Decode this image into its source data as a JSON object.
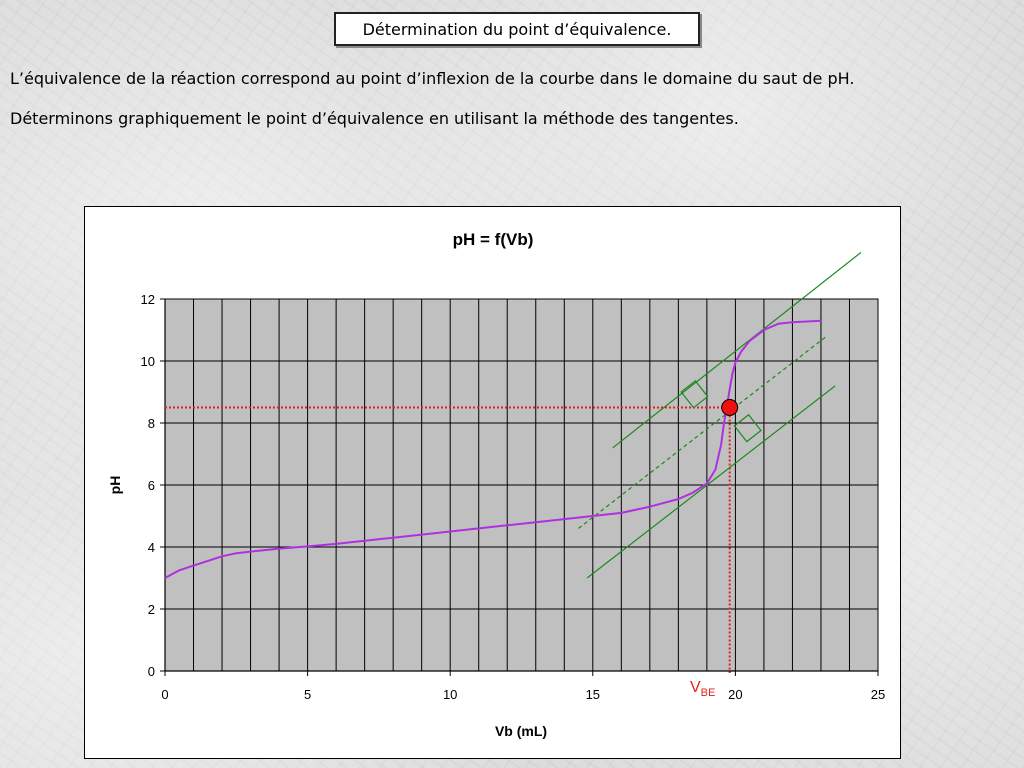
{
  "slide": {
    "title": "Détermination du point d’équivalence.",
    "paragraph1": "L’équivalence de la réaction correspond au point d’inflexion de la courbe dans le domaine du saut de pH.",
    "paragraph2": "Déterminons graphiquement le point d’équivalence en utilisant la méthode des tangentes."
  },
  "chart_data": {
    "type": "line",
    "title": "pH = f(Vb)",
    "xlabel": "Vb (mL)",
    "ylabel": "pH",
    "xlim": [
      0,
      25
    ],
    "ylim": [
      0,
      12
    ],
    "x_ticks": [
      0,
      5,
      10,
      15,
      20,
      25
    ],
    "y_ticks": [
      0,
      2,
      4,
      6,
      8,
      10,
      12
    ],
    "grid": true,
    "plot_background": "#c0c0c0",
    "series": [
      {
        "color": "#b030e0",
        "x": [
          0,
          0.5,
          1,
          1.5,
          2,
          2.5,
          3,
          4,
          5,
          6,
          7,
          8,
          9,
          10,
          11,
          12,
          13,
          14,
          15,
          16,
          17,
          18,
          18.5,
          19,
          19.3,
          19.5,
          19.6,
          19.7,
          19.8,
          19.9,
          20,
          20.2,
          20.5,
          21,
          21.5,
          22,
          23
        ],
        "y": [
          3.0,
          3.25,
          3.4,
          3.55,
          3.7,
          3.8,
          3.85,
          3.95,
          4.02,
          4.1,
          4.2,
          4.3,
          4.4,
          4.5,
          4.6,
          4.7,
          4.8,
          4.9,
          5.0,
          5.1,
          5.3,
          5.55,
          5.75,
          6.05,
          6.5,
          7.3,
          8.0,
          8.5,
          9.1,
          9.6,
          9.95,
          10.3,
          10.65,
          11.0,
          11.2,
          11.25,
          11.3
        ]
      }
    ],
    "tangent_lines": [
      {
        "color": "#1a8a1a",
        "style": "solid",
        "from": [
          15.7,
          7.2
        ],
        "to": [
          24.4,
          13.5
        ]
      },
      {
        "color": "#1a8a1a",
        "style": "solid",
        "from": [
          14.8,
          3.0
        ],
        "to": [
          23.5,
          9.2
        ]
      },
      {
        "color": "#1a8a1a",
        "style": "dashed",
        "from": [
          14.5,
          4.6
        ],
        "to": [
          23.2,
          10.8
        ]
      }
    ],
    "equivalence_point": {
      "x": 19.8,
      "y": 8.5,
      "marker_color": "#ee1111",
      "guide_color": "#dd2222",
      "label_main": "V",
      "label_sub": "BE"
    }
  }
}
